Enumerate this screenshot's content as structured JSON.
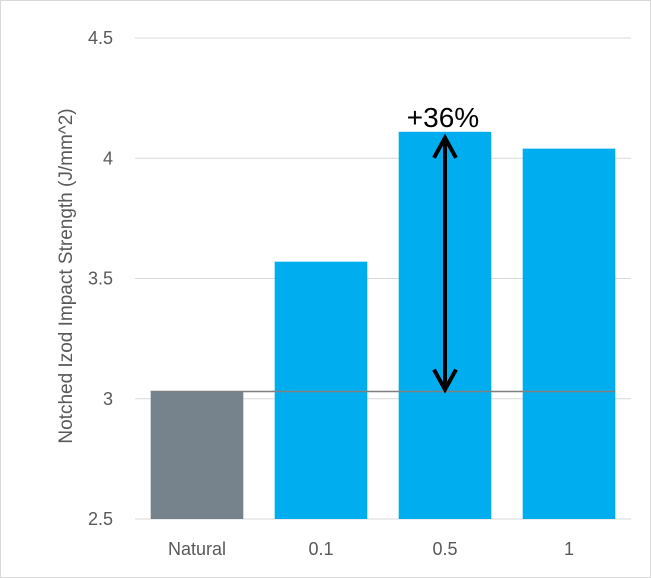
{
  "chart_data": {
    "type": "bar",
    "categories": [
      "Natural",
      "0.1",
      "0.5",
      "1"
    ],
    "values": [
      3.03,
      3.57,
      4.11,
      4.04
    ],
    "title": "",
    "xlabel": "",
    "ylabel": "Notched Izod Impact Strength (J/mm^2)",
    "ylim": [
      2.5,
      4.5
    ],
    "yticks": [
      "2.5",
      "3",
      "3.5",
      "4",
      "4.5"
    ],
    "grid": true,
    "legend": "none",
    "bar_colors": [
      "#76838c",
      "#00aeef",
      "#00aeef",
      "#00aeef"
    ],
    "gridline_color": "#d9d9d9",
    "baseline_color": "#7f7f7f",
    "baseline_value": 3.03,
    "annotation": {
      "text": "+36%",
      "from_value": 3.03,
      "to_value": 4.11,
      "category": "0.5",
      "arrow": "double-headed"
    }
  }
}
